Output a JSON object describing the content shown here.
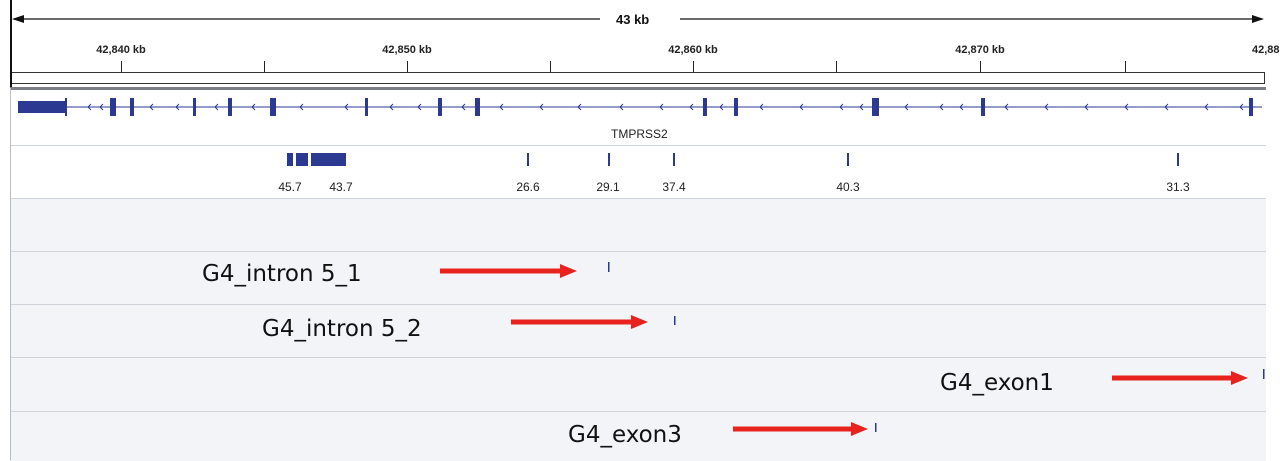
{
  "ruler": {
    "span_label": "43 kb",
    "ticks": [
      "42,840 kb",
      "42,850 kb",
      "42,860 kb",
      "42,870 kb",
      "42,88"
    ]
  },
  "gene_track": {
    "gene_name": "TMPRSS2",
    "feature_color": "#2b3990"
  },
  "score_track": {
    "scores": [
      "45.7",
      "43.7",
      "26.6",
      "29.1",
      "37.4",
      "40.3",
      "31.3"
    ]
  },
  "annotations": [
    {
      "label": "G4_intron 5_1"
    },
    {
      "label": "G4_intron 5_2"
    },
    {
      "label": "G4_exon1"
    },
    {
      "label": "G4_exon3"
    }
  ],
  "colors": {
    "arrow": "#e8231e",
    "feature": "#2b3990",
    "track_background": "#f3f4f8"
  }
}
